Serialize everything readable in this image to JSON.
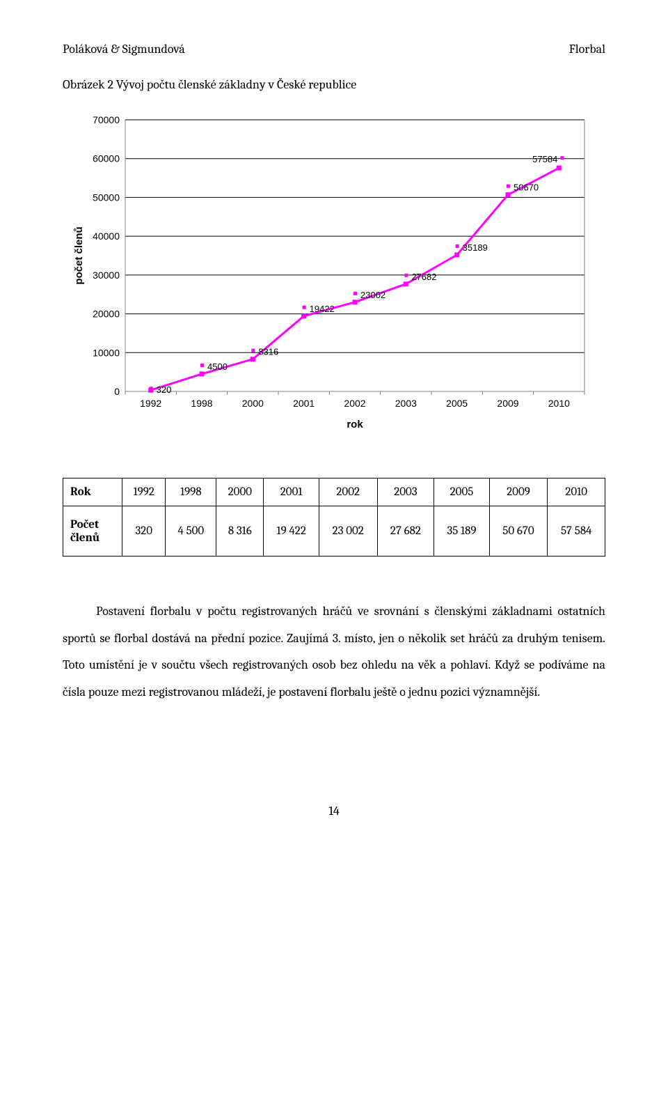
{
  "header": {
    "left": "Poláková & Sigmundová",
    "right": "Florbal"
  },
  "figure_caption": "Obrázek 2 Vývoj počtu členské základny v České republice",
  "chart": {
    "type": "line",
    "background_color": "#ffffff",
    "plot_border_color": "#808080",
    "grid_color": "#000000",
    "line_color": "#ff00ff",
    "marker_color": "#ff00ff",
    "marker_size": 6,
    "line_width": 3,
    "ylabel": "počet členů",
    "ylabel_fontsize": 15,
    "xlabel": "rok",
    "xlabel_fontsize": 15,
    "xlabel_bold": true,
    "ylim": [
      0,
      70000
    ],
    "ytick_step": 10000,
    "yticks": [
      "0",
      "10000",
      "20000",
      "30000",
      "40000",
      "50000",
      "60000",
      "70000"
    ],
    "tick_fontsize": 14,
    "x_categories": [
      "1992",
      "1998",
      "2000",
      "2001",
      "2002",
      "2003",
      "2005",
      "2009",
      "2010"
    ],
    "values": [
      320,
      4500,
      8316,
      19422,
      23002,
      27682,
      35189,
      50670,
      57584
    ],
    "data_label_fontsize": 13,
    "data_label_color": "#000000"
  },
  "table": {
    "header_label": "Rok",
    "columns": [
      "1992",
      "1998",
      "2000",
      "2001",
      "2002",
      "2003",
      "2005",
      "2009",
      "2010"
    ],
    "row_label_line1": "Počet",
    "row_label_line2": "členů",
    "row_values": [
      "320",
      "4 500",
      "8 316",
      "19 422",
      "23 002",
      "27 682",
      "35 189",
      "50 670",
      "57 584"
    ]
  },
  "paragraph": "Postavení florbalu v počtu registrovaných hráčů ve srovnání s  členskými základnami ostatních sportů se florbal dostává na přední pozice. Zaujímá 3. místo, jen o několik set hráčů za druhým tenisem. Toto umístění je v součtu všech registrovaných osob bez ohledu na věk a pohlaví. Když se podíváme na čísla pouze mezi registrovanou mládeží, je postavení florbalu ještě o jednu pozici významnější.",
  "page_number": "14"
}
